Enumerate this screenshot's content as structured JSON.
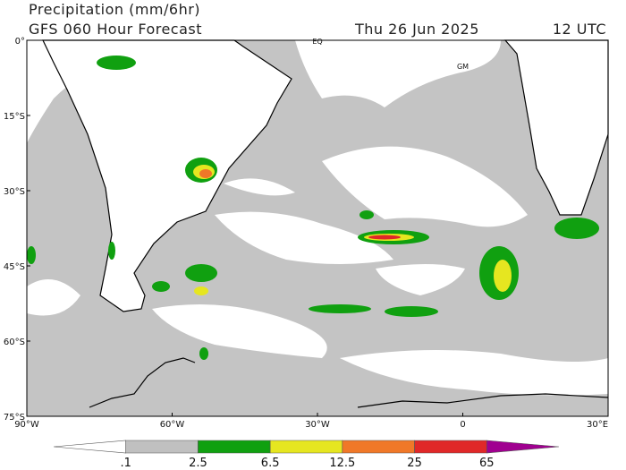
{
  "header": {
    "title": "Precipitation (mm/6hr)",
    "model": "GFS 060 Hour Forecast",
    "date": "Thu 26 Jun 2025",
    "time": "12 UTC"
  },
  "map": {
    "lonlim": [
      -90,
      30
    ],
    "latlim": [
      0,
      -75
    ],
    "lon_ticks": [
      {
        "value": -90,
        "label": "90°W"
      },
      {
        "value": -60,
        "label": "60°W"
      },
      {
        "value": -30,
        "label": "30°W"
      },
      {
        "value": 0,
        "label": "0"
      },
      {
        "value": 30,
        "label": "30°E"
      }
    ],
    "lat_ticks": [
      {
        "value": 0,
        "label": "0°"
      },
      {
        "value": -15,
        "label": "15°S"
      },
      {
        "value": -30,
        "label": "30°S"
      },
      {
        "value": -45,
        "label": "45°S"
      },
      {
        "value": -60,
        "label": "60°S"
      },
      {
        "value": -75,
        "label": "75°S"
      }
    ],
    "annotations": [
      {
        "text": "EQ",
        "lon": -30,
        "lat": 0
      },
      {
        "text": "GM",
        "lon": 0,
        "lat": -5
      }
    ]
  },
  "legend": {
    "labels": [
      ".1",
      "2.5",
      "6.5",
      "12.5",
      "25",
      "65"
    ],
    "colors": [
      "#ffffff",
      "#c0c0c0",
      "#10a010",
      "#e6e620",
      "#f07828",
      "#e02828",
      "#a00090"
    ]
  }
}
